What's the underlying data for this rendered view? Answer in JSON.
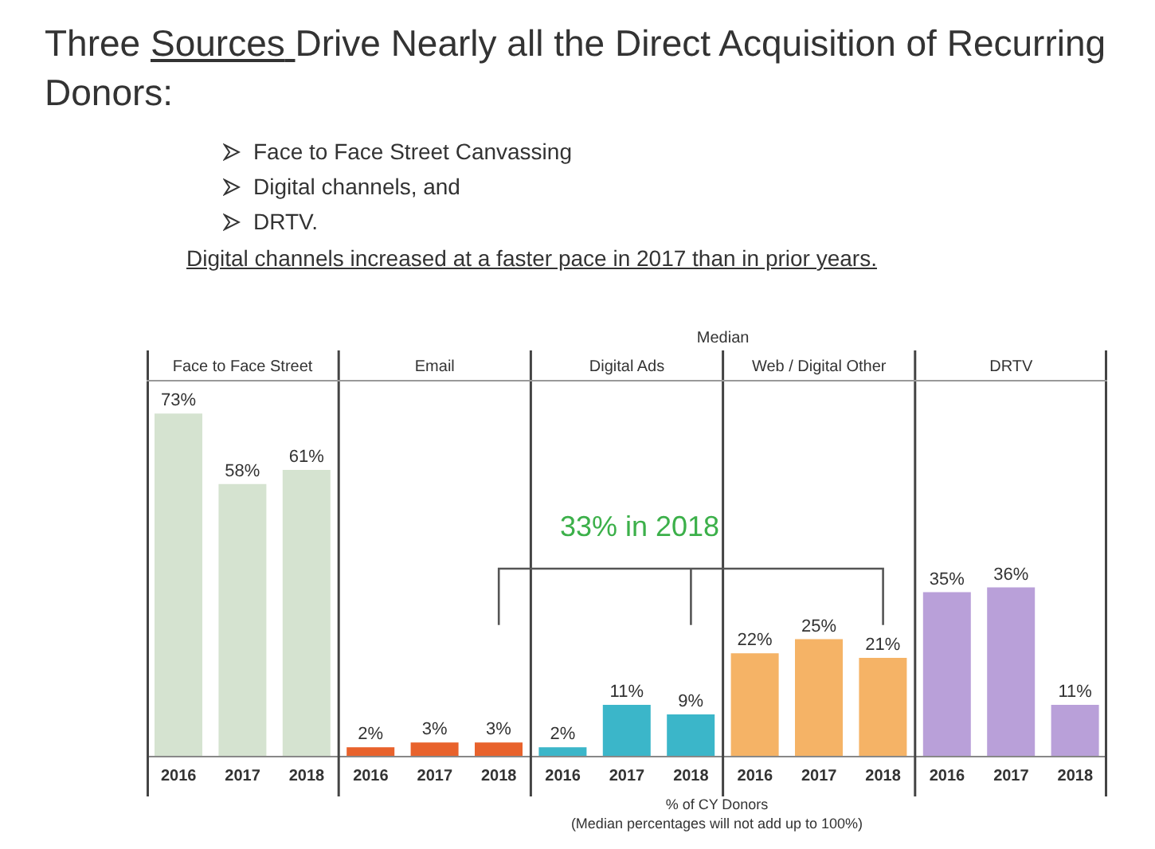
{
  "chart_data": {
    "type": "bar",
    "title": "Three Sources Drive Nearly all the Direct Acquisition of Recurring Donors:",
    "subtitle": "Digital channels increased at a faster pace in 2017 than in prior years.",
    "xlabel": "% of CY Donors",
    "categories": [
      "2016",
      "2017",
      "2018",
      "2016",
      "2017",
      "2018",
      "2016",
      "2017",
      "2018",
      "2016",
      "2017",
      "2018",
      "2016",
      "2017",
      "2018"
    ],
    "values": [
      73,
      58,
      61,
      2,
      3,
      3,
      2,
      11,
      9,
      22,
      25,
      21,
      35,
      36,
      11
    ],
    "value_labels": [
      "73%",
      "58%",
      "61%",
      "2%",
      "3%",
      "3%",
      "2%",
      "11%",
      "9%",
      "22%",
      "25%",
      "21%",
      "35%",
      "36%",
      "11%"
    ],
    "colors": [
      "#d5e3d0",
      "#d5e3d0",
      "#d5e3d0",
      "#e8622c",
      "#e8622c",
      "#e8622c",
      "#3bb6c9",
      "#3bb6c9",
      "#3bb6c9",
      "#f5b366",
      "#f5b366",
      "#f5b366",
      "#b9a0d9",
      "#b9a0d9",
      "#b9a0d9"
    ],
    "ylim": [
      0,
      80
    ],
    "tick_labels": "x",
    "grid": false,
    "legend": false,
    "annotations": [
      "Face to Face Street",
      "Email",
      "Digital Ads",
      "Web / Digital Other",
      "DRTV",
      "Median",
      "33% in 2018",
      "Face to Face Street Canvassing",
      "Digital channels, and",
      "DRTV.",
      "(Median percentages will not add up to 100%)"
    ]
  }
}
